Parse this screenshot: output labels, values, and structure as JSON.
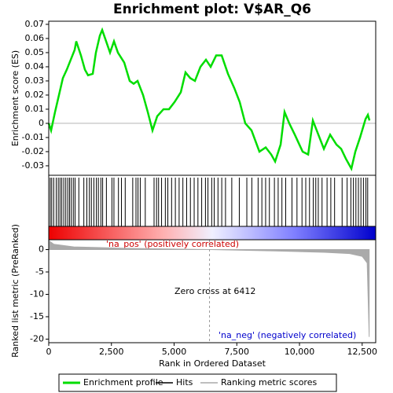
{
  "chart_data": [
    {
      "type": "line",
      "title": "Enrichment plot: V$AR_Q6",
      "ylabel": "Enrichment score (ES)",
      "color": "#00dd00",
      "x": [
        0,
        94,
        251,
        408,
        564,
        721,
        878,
        1035,
        1097,
        1285,
        1442,
        1568,
        1756,
        1881,
        2038,
        2132,
        2289,
        2445,
        2602,
        2759,
        3010,
        3229,
        3386,
        3543,
        3762,
        3950,
        4138,
        4326,
        4577,
        4797,
        5016,
        5267,
        5455,
        5643,
        5831,
        6051,
        6270,
        6458,
        6678,
        6897,
        7148,
        7399,
        7618,
        7838,
        8088,
        8402,
        8653,
        8872,
        9029,
        9248,
        9405,
        9593,
        9813,
        10126,
        10346,
        10534,
        10753,
        10973,
        11223,
        11474,
        11662,
        11850,
        12070,
        12227,
        12415,
        12634,
        12728,
        12791
      ],
      "values": [
        0,
        -0.005,
        0.008,
        0.02,
        0.032,
        0.038,
        0.045,
        0.052,
        0.058,
        0.048,
        0.038,
        0.034,
        0.035,
        0.05,
        0.062,
        0.066,
        0.058,
        0.05,
        0.058,
        0.05,
        0.043,
        0.03,
        0.028,
        0.03,
        0.02,
        0.008,
        -0.005,
        0.005,
        0.01,
        0.01,
        0.015,
        0.022,
        0.036,
        0.032,
        0.03,
        0.04,
        0.045,
        0.04,
        0.048,
        0.048,
        0.035,
        0.025,
        0.015,
        0,
        -0.005,
        -0.02,
        -0.017,
        -0.022,
        -0.027,
        -0.015,
        0.008,
        0,
        -0.008,
        -0.02,
        -0.022,
        0.002,
        -0.008,
        -0.018,
        -0.008,
        -0.015,
        -0.018,
        -0.025,
        -0.032,
        -0.02,
        -0.01,
        0.003,
        0.006,
        0.002
      ],
      "hits_name": "Hits",
      "hits_color": "#000000",
      "hits": [
        60,
        120,
        200,
        300,
        380,
        450,
        520,
        600,
        680,
        760,
        830,
        900,
        980,
        1050,
        1200,
        1400,
        1520,
        1620,
        1700,
        1800,
        1900,
        1980,
        2080,
        2150,
        2300,
        2520,
        2600,
        2780,
        2900,
        3050,
        3350,
        3480,
        3560,
        3650,
        3850,
        4200,
        4300,
        4380,
        4500,
        4650,
        4750,
        4900,
        5050,
        5200,
        5350,
        5500,
        5650,
        5800,
        5950,
        6100,
        6250,
        6350,
        6500,
        6600,
        6750,
        6900,
        7050,
        7300,
        7600,
        7900,
        8100,
        8350,
        8500,
        8650,
        8800,
        9000,
        9150,
        9300,
        9450,
        9700,
        9900,
        10100,
        10250,
        10400,
        10550,
        10650,
        10750,
        10900,
        11100,
        11250,
        11400,
        11700,
        11900,
        12050,
        12150,
        12250,
        12350,
        12450,
        12550,
        12650,
        12720
      ],
      "xlim": [
        0,
        13040
      ],
      "ylim": [
        -0.0367,
        0.0722
      ],
      "yticks": [
        -0.03,
        -0.02,
        -0.01,
        0,
        0.01,
        0.02,
        0.03,
        0.04,
        0.05,
        0.06,
        0.07
      ],
      "legend": [
        "Enrichment profile",
        "Hits",
        "Ranking metric scores"
      ]
    },
    {
      "type": "area",
      "ylabel": "Ranked list metric (PreRanked)",
      "xlabel": "Rank in Ordered Dataset",
      "color": "#aaaaaa",
      "x": [
        0,
        200,
        1000,
        3000,
        6412,
        9000,
        11000,
        12000,
        12500,
        12700,
        12780
      ],
      "values": [
        2,
        1.2,
        0.6,
        0.3,
        0,
        -0.3,
        -0.6,
        -0.9,
        -1.5,
        -3,
        -19.5
      ],
      "pos_label": "'na_pos' (positively correlated)",
      "neg_label": "'na_neg' (negatively correlated)",
      "zero_cross": 6412,
      "zero_cross_label": "Zero cross at 6412",
      "xlim": [
        0,
        13040
      ],
      "xticks": [
        0,
        {
          "value": 2500,
          "label": "2,500"
        },
        {
          "value": 5000,
          "label": "5,000"
        },
        {
          "value": 7500,
          "label": "7,500"
        },
        {
          "value": 10000,
          "label": "10,000"
        },
        {
          "value": 12500,
          "label": "12,500"
        }
      ],
      "ylim": [
        -20.8,
        2.2
      ],
      "yticks": [
        -20,
        -15,
        -10,
        -5,
        0
      ]
    }
  ]
}
